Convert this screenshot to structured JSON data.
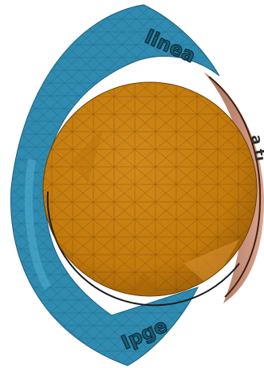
{
  "scene": {
    "background": "#ffffff",
    "outer_shell_color": "#2f8bb0",
    "outer_shell_edge_color": "#1c5f80",
    "inner_sphere_color": "#c27a0c",
    "inner_sphere_edge_color": "#6a3f05",
    "back_surface_color": "#c98f7a",
    "mesh_line_color": "#1a1a1a",
    "embossed_text": {
      "top_text": "linea",
      "top_text_color": "#1b5c72",
      "bottom_text": "Ipge",
      "bottom_text_color": "#1b5c72",
      "right_fragment": "a ti",
      "right_fragment_color": "#2d2d2d"
    }
  }
}
